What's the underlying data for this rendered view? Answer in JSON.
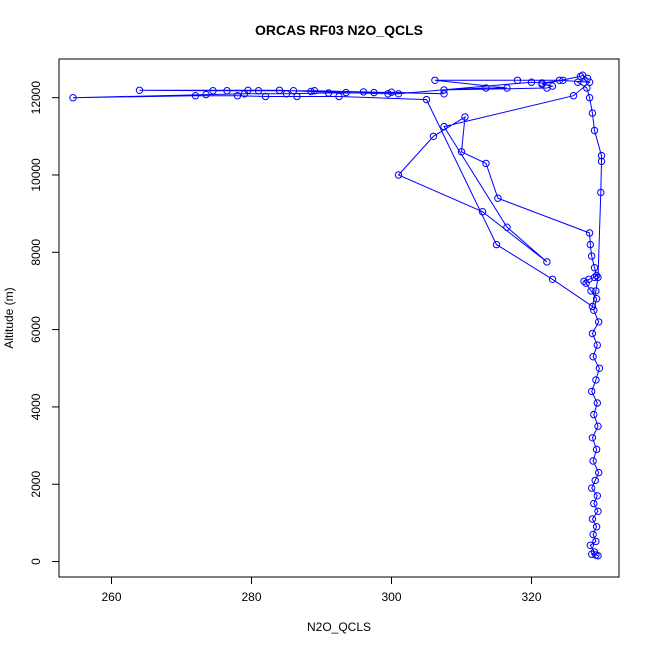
{
  "chart_data": {
    "type": "line",
    "title": "ORCAS RF03 N2O_QCLS",
    "xlabel": "N2O_QCLS",
    "ylabel": "Altitude (m)",
    "xlim": [
      252.5,
      332.5
    ],
    "ylim": [
      -400,
      13000
    ],
    "xticks": [
      260,
      280,
      300,
      320
    ],
    "yticks": [
      0,
      2000,
      4000,
      6000,
      8000,
      10000,
      12000
    ],
    "grid": false,
    "legend": "none",
    "markers": "open-circle",
    "colors": {
      "series": "#0000ff",
      "axis": "#000000",
      "background": "#ffffff"
    },
    "series": [
      {
        "points": [
          [
            329.5,
            150
          ],
          [
            329.2,
            170
          ],
          [
            328.6,
            190
          ],
          [
            329.0,
            250
          ],
          [
            328.4,
            420
          ],
          [
            329.2,
            520
          ],
          [
            328.8,
            700
          ],
          [
            329.3,
            900
          ],
          [
            328.7,
            1100
          ],
          [
            329.5,
            1300
          ],
          [
            328.9,
            1500
          ],
          [
            329.4,
            1700
          ],
          [
            328.6,
            1900
          ],
          [
            329.1,
            2100
          ],
          [
            329.6,
            2300
          ],
          [
            328.8,
            2600
          ],
          [
            329.3,
            2900
          ],
          [
            328.7,
            3200
          ],
          [
            329.5,
            3500
          ],
          [
            328.9,
            3800
          ],
          [
            329.4,
            4100
          ],
          [
            328.6,
            4400
          ],
          [
            329.2,
            4700
          ],
          [
            329.7,
            5000
          ],
          [
            328.8,
            5300
          ],
          [
            329.4,
            5600
          ],
          [
            328.7,
            5900
          ],
          [
            329.6,
            6200
          ],
          [
            328.9,
            6500
          ],
          [
            329.3,
            6800
          ],
          [
            328.5,
            7000
          ],
          [
            327.8,
            7200
          ],
          [
            327.5,
            7250
          ],
          [
            328.2,
            7300
          ],
          [
            329.0,
            7350
          ],
          [
            329.3,
            7400
          ],
          [
            329.0,
            7600
          ],
          [
            328.6,
            7900
          ],
          [
            328.4,
            8200
          ],
          [
            328.3,
            8500
          ],
          [
            315.2,
            9400
          ],
          [
            313.5,
            10300
          ],
          [
            310.0,
            10600
          ],
          [
            310.5,
            11500
          ],
          [
            306.0,
            11000
          ],
          [
            301.0,
            10000
          ],
          [
            313.0,
            9050
          ],
          [
            322.2,
            7750
          ],
          [
            316.5,
            8650
          ],
          [
            307.5,
            11250
          ],
          [
            326.0,
            12050
          ],
          [
            328.3,
            12400
          ],
          [
            324.0,
            12450
          ],
          [
            318.0,
            12450
          ],
          [
            306.2,
            12450
          ],
          [
            316.5,
            12250
          ],
          [
            313.5,
            12250
          ],
          [
            307.5,
            12200
          ],
          [
            322.2,
            12250
          ],
          [
            323.0,
            12300
          ],
          [
            321.5,
            12350
          ],
          [
            327.0,
            12550
          ],
          [
            327.3,
            12580
          ],
          [
            328.0,
            12500
          ],
          [
            326.6,
            12400
          ],
          [
            327.9,
            12250
          ],
          [
            328.3,
            12000
          ],
          [
            328.7,
            11600
          ],
          [
            329.0,
            11150
          ],
          [
            330.0,
            10500
          ],
          [
            330.0,
            10350
          ],
          [
            329.9,
            9550
          ],
          [
            329.5,
            7350
          ],
          [
            329.2,
            7000
          ],
          [
            328.7,
            6600
          ],
          [
            323.0,
            7300
          ],
          [
            315.0,
            8200
          ],
          [
            305.0,
            11950
          ],
          [
            292.5,
            12030
          ],
          [
            286.5,
            12030
          ],
          [
            282.0,
            12030
          ],
          [
            278.0,
            12050
          ],
          [
            272.0,
            12050
          ],
          [
            254.5,
            12000
          ],
          [
            273.5,
            12080
          ],
          [
            279.0,
            12100
          ],
          [
            285.0,
            12100
          ],
          [
            291.0,
            12120
          ],
          [
            297.5,
            12130
          ],
          [
            300.0,
            12140
          ],
          [
            307.5,
            12100
          ],
          [
            296.0,
            12150
          ],
          [
            289.0,
            12180
          ],
          [
            286.0,
            12180
          ],
          [
            281.0,
            12180
          ],
          [
            276.5,
            12180
          ],
          [
            274.5,
            12180
          ],
          [
            264.0,
            12190
          ],
          [
            279.5,
            12190
          ],
          [
            284.0,
            12190
          ],
          [
            288.5,
            12160
          ],
          [
            293.5,
            12130
          ],
          [
            299.5,
            12100
          ],
          [
            301.0,
            12100
          ],
          [
            320.0,
            12400
          ],
          [
            321.5,
            12380
          ],
          [
            324.5,
            12450
          ]
        ]
      }
    ]
  }
}
